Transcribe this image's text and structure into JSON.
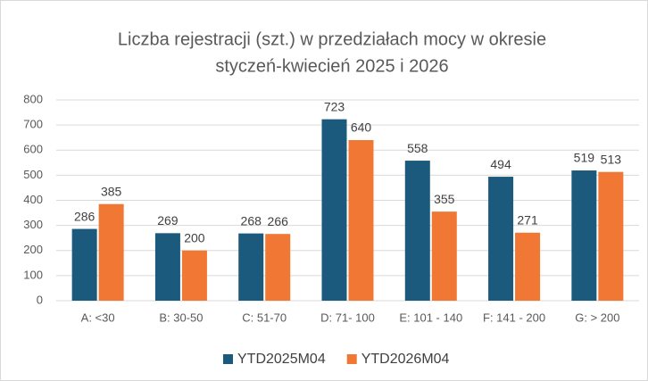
{
  "chart_data": {
    "type": "bar",
    "title": [
      "Liczba rejestracji (szt.) w przedziałach mocy w okresie",
      "styczeń-kwiecień 2025 i 2026"
    ],
    "categories": [
      "A: <30",
      "B: 30-50",
      "C: 51-70",
      "D: 71- 100",
      "E: 101 - 140",
      "F: 141 - 200",
      "G: > 200"
    ],
    "series": [
      {
        "name": "YTD2025M04",
        "color": "#1b5a7c",
        "values": [
          286,
          269,
          268,
          723,
          558,
          494,
          519
        ]
      },
      {
        "name": "YTD2026M04",
        "color": "#f07834",
        "values": [
          385,
          200,
          266,
          640,
          355,
          271,
          513
        ]
      }
    ],
    "ylim": [
      0,
      800
    ],
    "yticks": [
      0,
      100,
      200,
      300,
      400,
      500,
      600,
      700,
      800
    ],
    "grid": true,
    "legend": "bottom"
  }
}
